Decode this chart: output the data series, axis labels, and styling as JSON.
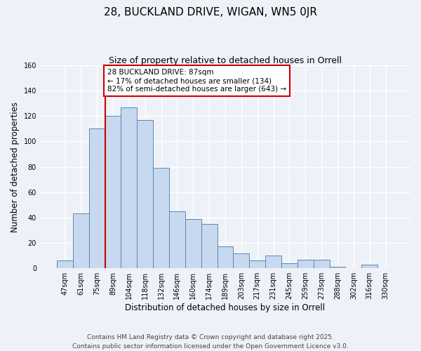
{
  "title": "28, BUCKLAND DRIVE, WIGAN, WN5 0JR",
  "subtitle": "Size of property relative to detached houses in Orrell",
  "xlabel": "Distribution of detached houses by size in Orrell",
  "ylabel": "Number of detached properties",
  "categories": [
    "47sqm",
    "61sqm",
    "75sqm",
    "89sqm",
    "104sqm",
    "118sqm",
    "132sqm",
    "146sqm",
    "160sqm",
    "174sqm",
    "189sqm",
    "203sqm",
    "217sqm",
    "231sqm",
    "245sqm",
    "259sqm",
    "273sqm",
    "288sqm",
    "302sqm",
    "316sqm",
    "330sqm"
  ],
  "values": [
    6,
    43,
    110,
    120,
    127,
    117,
    79,
    45,
    39,
    35,
    17,
    12,
    6,
    10,
    4,
    7,
    7,
    1,
    0,
    3,
    0
  ],
  "bar_color": "#c8d8ee",
  "bar_edge_color": "#5588bb",
  "ylim": [
    0,
    160
  ],
  "yticks": [
    0,
    20,
    40,
    60,
    80,
    100,
    120,
    140,
    160
  ],
  "vline_x_index": 3,
  "vline_color": "#cc0000",
  "annotation_text": "28 BUCKLAND DRIVE: 87sqm\n← 17% of detached houses are smaller (134)\n82% of semi-detached houses are larger (643) →",
  "annotation_box_color": "#ffffff",
  "annotation_box_edge": "#cc0000",
  "footer_line1": "Contains HM Land Registry data © Crown copyright and database right 2025.",
  "footer_line2": "Contains public sector information licensed under the Open Government Licence v3.0.",
  "bg_color": "#eef2f8",
  "grid_color": "#ffffff",
  "title_fontsize": 11,
  "subtitle_fontsize": 9,
  "tick_fontsize": 7,
  "ylabel_fontsize": 8.5,
  "xlabel_fontsize": 8.5,
  "annotation_fontsize": 7.5,
  "footer_fontsize": 6.5
}
